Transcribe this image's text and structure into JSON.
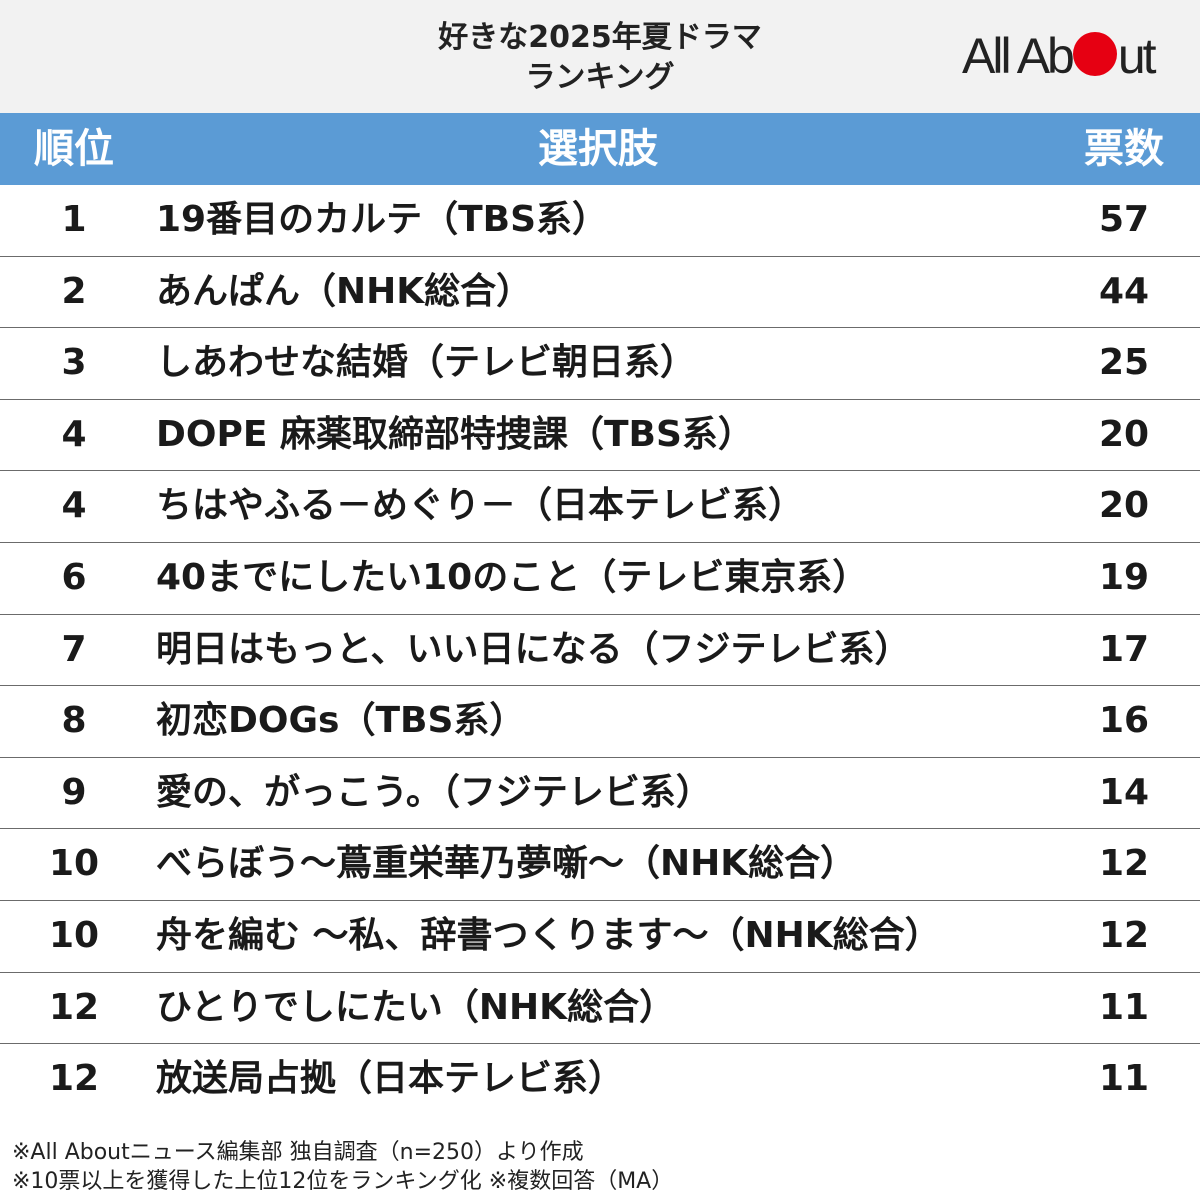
{
  "header": {
    "title_line1": "好きな2025年夏ドラマ",
    "title_line2": "ランキング",
    "logo_left": "All Ab",
    "logo_right": "ut",
    "logo_accent": "#e60012"
  },
  "table_header": {
    "rank": "順位",
    "choice": "選択肢",
    "votes": "票数",
    "color": "#5b9bd5"
  },
  "chart_data": {
    "type": "table",
    "columns": [
      "順位",
      "選択肢",
      "票数"
    ],
    "rows": [
      {
        "rank": "1",
        "name": "19番目のカルテ（TBS系）",
        "votes": 57
      },
      {
        "rank": "2",
        "name": "あんぱん（NHK総合）",
        "votes": 44
      },
      {
        "rank": "3",
        "name": "しあわせな結婚（テレビ朝日系）",
        "votes": 25
      },
      {
        "rank": "4",
        "name": "DOPE 麻薬取締部特捜課（TBS系）",
        "votes": 20
      },
      {
        "rank": "4",
        "name": "ちはやふる－めぐり－（日本テレビ系）",
        "votes": 20
      },
      {
        "rank": "6",
        "name": "40までにしたい10のこと（テレビ東京系）",
        "votes": 19
      },
      {
        "rank": "7",
        "name": "明日はもっと、いい日になる（フジテレビ系）",
        "votes": 17
      },
      {
        "rank": "8",
        "name": "初恋DOGs（TBS系）",
        "votes": 16
      },
      {
        "rank": "9",
        "name": "愛の、がっこう。（フジテレビ系）",
        "votes": 14
      },
      {
        "rank": "10",
        "name": "べらぼう～蔦重栄華乃夢噺～（NHK総合）",
        "votes": 12
      },
      {
        "rank": "10",
        "name": "舟を編む ～私、辞書つくります～（NHK総合）",
        "votes": 12
      },
      {
        "rank": "12",
        "name": "ひとりでしにたい（NHK総合）",
        "votes": 11
      },
      {
        "rank": "12",
        "name": "放送局占拠（日本テレビ系）",
        "votes": 11
      }
    ]
  },
  "notes": {
    "line1": "※All Aboutニュース編集部 独自調査（n=250）より作成",
    "line2": "※10票以上を獲得した上位12位をランキング化 ※複数回答（MA）"
  }
}
